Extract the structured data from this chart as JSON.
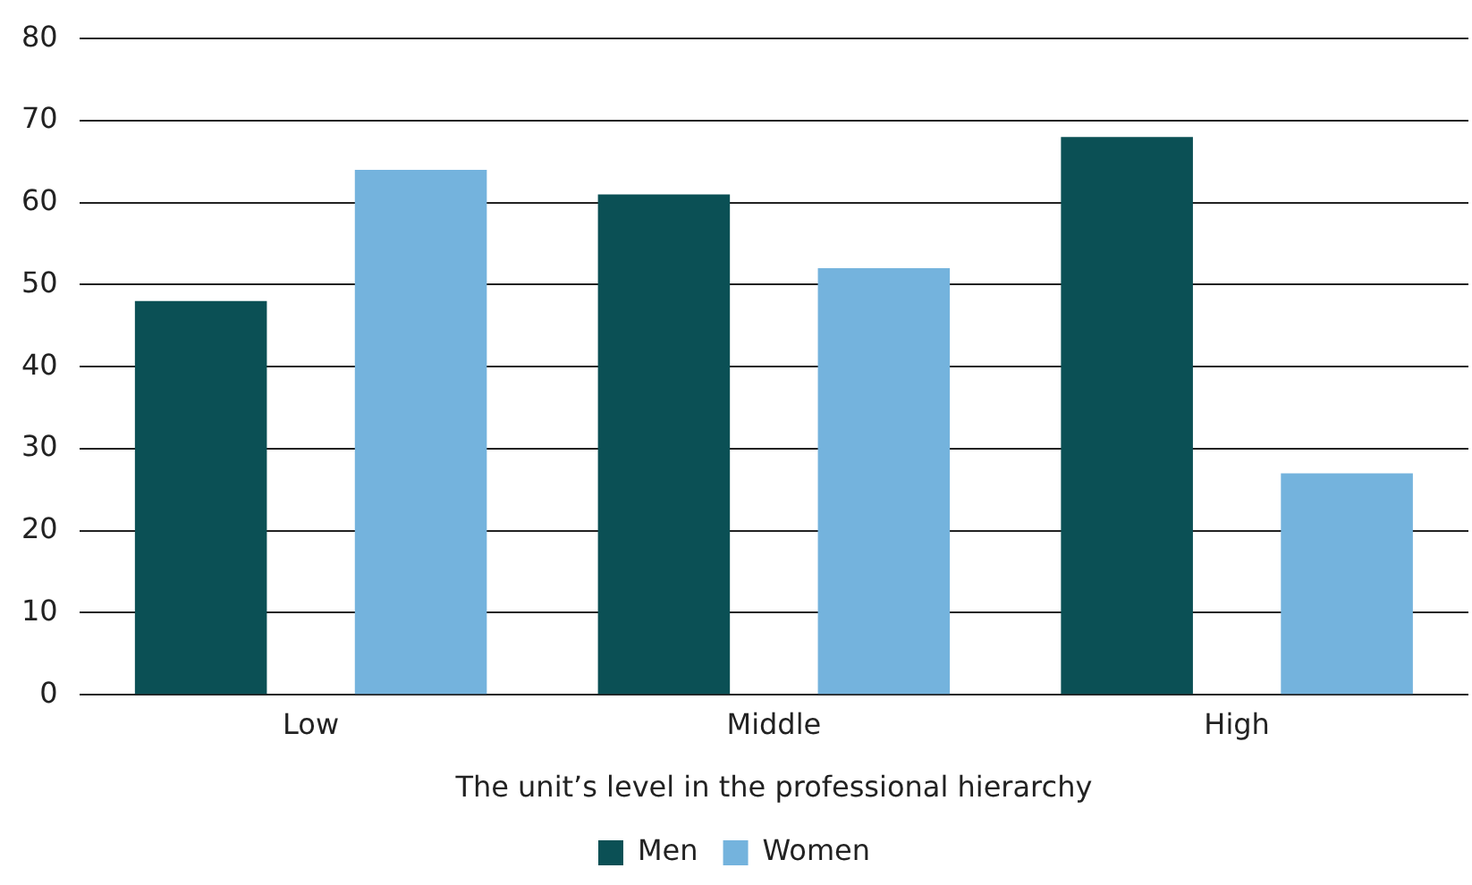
{
  "chart_data": {
    "type": "bar",
    "xlabel": "The unit’s level in the professional hierarchy",
    "categories": [
      "Low",
      "Middle",
      "High"
    ],
    "series": [
      {
        "name": "Men",
        "color": "#0b5055",
        "values": [
          48,
          61,
          68
        ]
      },
      {
        "name": "Women",
        "color": "#74b3dd",
        "values": [
          64,
          52,
          27
        ]
      }
    ],
    "ylim": [
      0,
      80
    ],
    "yticks": [
      0,
      10,
      20,
      30,
      40,
      50,
      60,
      70,
      80
    ],
    "grid": "y",
    "legend": "bottom"
  }
}
